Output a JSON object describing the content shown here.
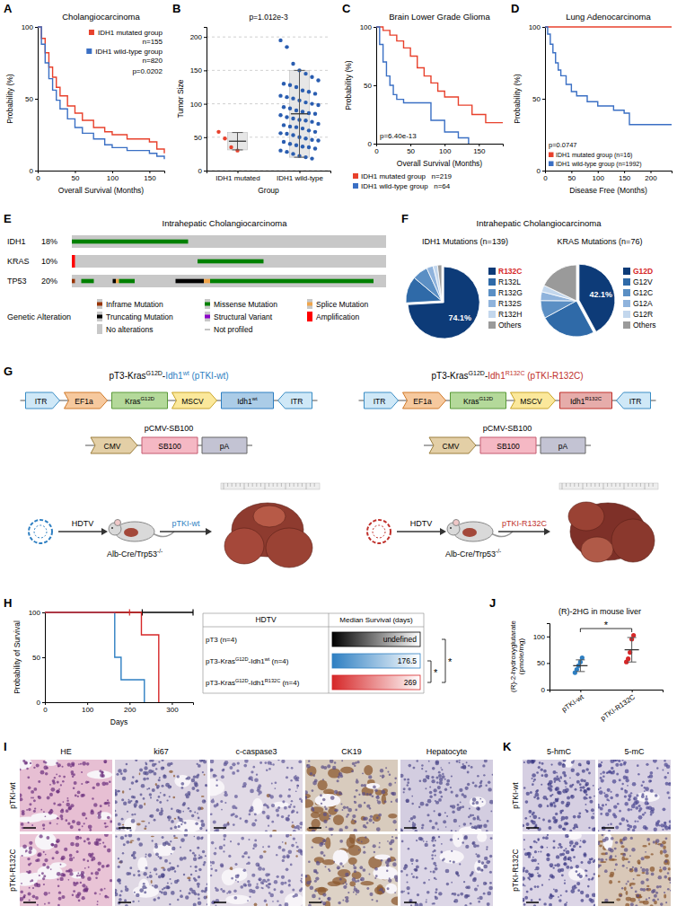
{
  "panels": [
    "A",
    "B",
    "C",
    "D",
    "E",
    "F",
    "G",
    "H",
    "I",
    "J",
    "K"
  ],
  "chart_data": [
    {
      "type": "line",
      "title": "Cholangiocarcinoma",
      "x_label": "Overall Survival (Months)",
      "y_label": "Probability (%)",
      "xlim": [
        0,
        170
      ],
      "ylim": [
        0,
        100
      ],
      "xticks": [
        0,
        50,
        100,
        150
      ],
      "yticks": [
        0,
        50,
        100
      ],
      "legend": "top-right",
      "annotation": "p=0.0202",
      "line_style": "step",
      "series": [
        {
          "name": "IDH1 mutated group",
          "n_label": "n=155",
          "color": "#e8412c",
          "x": [
            0,
            5,
            10,
            15,
            20,
            25,
            30,
            40,
            50,
            60,
            75,
            90,
            100,
            120,
            150,
            160,
            170
          ],
          "values": [
            100,
            92,
            82,
            72,
            65,
            58,
            52,
            45,
            40,
            35,
            30,
            27,
            25,
            22,
            20,
            15,
            12
          ]
        },
        {
          "name": "IDH1 wild-type group",
          "n_label": "n=820",
          "color": "#3a6fc4",
          "x": [
            0,
            5,
            10,
            15,
            20,
            25,
            30,
            40,
            50,
            60,
            75,
            90,
            100,
            120,
            150,
            160,
            170
          ],
          "values": [
            100,
            88,
            75,
            64,
            56,
            49,
            43,
            36,
            30,
            26,
            22,
            18,
            16,
            14,
            12,
            10,
            8
          ]
        }
      ]
    },
    {
      "type": "scatter",
      "annotation": "p=1.012e-3",
      "x_label": "Group",
      "y_label": "Tumor Size",
      "categories": [
        "IDH1 mutated",
        "IDH1 wild-type"
      ],
      "colors": [
        "#e8412c",
        "#2a5db0"
      ],
      "ylim": [
        0,
        215
      ],
      "yticks": [
        0,
        50,
        100,
        150,
        200
      ],
      "grid": true,
      "values": [
        [
          58,
          48,
          35,
          30
        ],
        [
          195,
          185,
          160,
          150,
          145,
          140,
          135,
          130,
          128,
          125,
          120,
          118,
          115,
          112,
          110,
          108,
          105,
          102,
          100,
          98,
          95,
          93,
          90,
          88,
          86,
          85,
          83,
          80,
          78,
          76,
          75,
          73,
          70,
          68,
          66,
          65,
          63,
          60,
          58,
          56,
          55,
          53,
          50,
          48,
          46,
          45,
          43,
          40,
          38,
          36,
          35,
          33,
          30,
          28,
          25,
          22,
          20,
          18
        ]
      ],
      "means": [
        44,
        85
      ],
      "sd": [
        13,
        65
      ]
    },
    {
      "type": "line",
      "title": "Brain Lower Grade Glioma",
      "x_label": "Overall Survival (Months)",
      "y_label": "Probability (%)",
      "xlim": [
        0,
        185
      ],
      "ylim": [
        0,
        100
      ],
      "xticks": [
        0,
        50,
        100,
        150
      ],
      "yticks": [
        0,
        50,
        100
      ],
      "legend": "bottom",
      "annotation": "p=6.40e-13",
      "line_style": "step",
      "series": [
        {
          "name": "IDH1 mutated group",
          "n_label": "n=219",
          "color": "#e8412c",
          "x": [
            0,
            10,
            20,
            30,
            40,
            50,
            60,
            70,
            80,
            90,
            100,
            120,
            140,
            160,
            185
          ],
          "values": [
            100,
            97,
            93,
            88,
            82,
            75,
            65,
            58,
            52,
            45,
            40,
            33,
            25,
            18,
            18
          ]
        },
        {
          "name": "IDH1 wild-type group",
          "n_label": "n=64",
          "color": "#3a6fc4",
          "x": [
            0,
            5,
            10,
            15,
            20,
            25,
            30,
            40,
            60,
            80,
            100,
            120,
            135
          ],
          "values": [
            100,
            85,
            70,
            58,
            50,
            42,
            38,
            35,
            35,
            20,
            10,
            5,
            0
          ]
        }
      ]
    },
    {
      "type": "line",
      "title": "Lung Adenocarcinoma",
      "x_label": "Disease Free (Months)",
      "y_label": "Probability (%)",
      "xlim": [
        0,
        240
      ],
      "ylim": [
        0,
        100
      ],
      "xticks": [
        0,
        50,
        100,
        150,
        200
      ],
      "yticks": [
        0,
        50,
        100
      ],
      "legend": "bottom-left",
      "annotation": "p=0.0747",
      "line_style": "step",
      "series": [
        {
          "name": "IDH1 mutated group (n=16)",
          "color": "#e8412c",
          "x": [
            0,
            240
          ],
          "values": [
            100,
            100
          ]
        },
        {
          "name": "IDH1 wild-type group (n=1992)",
          "color": "#3a6fc4",
          "x": [
            0,
            5,
            10,
            15,
            20,
            25,
            30,
            40,
            50,
            60,
            80,
            100,
            130,
            150,
            160,
            240
          ],
          "values": [
            100,
            95,
            88,
            82,
            75,
            70,
            66,
            60,
            55,
            52,
            48,
            45,
            42,
            40,
            32,
            32
          ]
        }
      ]
    },
    {
      "type": "pie",
      "title": "IDH1 Mutations (n=139)",
      "categories": [
        "R132C",
        "R132L",
        "R132G",
        "R132S",
        "R132H",
        "Others"
      ],
      "values": [
        74.1,
        12,
        7,
        3,
        2,
        1.9
      ],
      "colors": [
        "#0d3b78",
        "#2f6aa8",
        "#5b8fc4",
        "#8fb3dc",
        "#c3d7ed",
        "#9a9a9a"
      ],
      "data_labels": true,
      "value_labels": [
        "74.1%",
        null,
        null,
        null,
        null,
        null
      ],
      "legend": "right"
    },
    {
      "type": "pie",
      "title": "KRAS Mutations (n=76)",
      "categories": [
        "G12D",
        "G12V",
        "G12C",
        "G12A",
        "G12R",
        "Others"
      ],
      "values": [
        42.1,
        25,
        8,
        4,
        3,
        17.9
      ],
      "colors": [
        "#0d3b78",
        "#2f6aa8",
        "#5b8fc4",
        "#8fb3dc",
        "#c3d7ed",
        "#9a9a9a"
      ],
      "data_labels": true,
      "value_labels": [
        "42.1%",
        null,
        null,
        null,
        null,
        null
      ],
      "legend": "right"
    },
    {
      "type": "line",
      "x_label": "Days",
      "y_label": "Probability of Survival",
      "xlim": [
        0,
        350
      ],
      "ylim": [
        0,
        100
      ],
      "xticks": [
        0,
        100,
        200,
        300
      ],
      "yticks": [
        0,
        50,
        100
      ],
      "line_style": "step",
      "series": [
        {
          "color": "#000000",
          "x": [
            0,
            350
          ],
          "values": [
            100,
            100
          ],
          "censored": [
            230,
            350
          ]
        },
        {
          "color": "#2e7fc2",
          "x": [
            0,
            165,
            180,
            235
          ],
          "values": [
            100,
            50,
            25,
            0
          ]
        },
        {
          "color": "#d62728",
          "x": [
            0,
            228,
            269
          ],
          "values": [
            100,
            75,
            0
          ],
          "censored": [
            200
          ]
        }
      ]
    },
    {
      "type": "scatter",
      "title": "(R)-2HG in mouse liver",
      "y_label": "(R)-2-hydroxyglutarate (pmole/mg)",
      "categories": [
        "pTKI-wt",
        "pTKI-R132C"
      ],
      "colors": [
        "#2e7fc2",
        "#d62728"
      ],
      "ylim": [
        0,
        125
      ],
      "yticks": [
        0,
        50,
        100
      ],
      "values": [
        [
          32,
          38,
          45,
          52,
          60
        ],
        [
          52,
          58,
          70,
          95,
          102
        ]
      ],
      "means": [
        45,
        75
      ],
      "sd": [
        11,
        23
      ],
      "annotation": "*"
    }
  ],
  "panel_f_title": "Intrahepatic Cholangiocarcinoma",
  "oncoprint": {
    "title": "Intrahepatic Cholangiocarcinoma",
    "xlim": [
      0,
      100
    ],
    "genes": [
      {
        "name": "IDH1",
        "freq": "18%",
        "alterations": [
          {
            "type": "Missense Mutation",
            "start": 0,
            "end": 37
          }
        ]
      },
      {
        "name": "KRAS",
        "freq": "10%",
        "alterations": [
          {
            "type": "Amplification",
            "start": 0,
            "end": 1
          },
          {
            "type": "Missense Mutation",
            "start": 40,
            "end": 61
          }
        ]
      },
      {
        "name": "TP53",
        "freq": "20%",
        "alterations": [
          {
            "type": "Inframe Mutation",
            "start": 0,
            "end": 1
          },
          {
            "type": "Missense Mutation",
            "start": 3,
            "end": 7
          },
          {
            "type": "Truncating Mutation",
            "start": 13,
            "end": 14
          },
          {
            "type": "Splice Mutation",
            "start": 14,
            "end": 15
          },
          {
            "type": "Missense Mutation",
            "start": 15,
            "end": 20
          },
          {
            "type": "Truncating Mutation",
            "start": 33,
            "end": 42
          },
          {
            "type": "Splice Mutation",
            "start": 42,
            "end": 44
          },
          {
            "type": "Missense Mutation",
            "start": 44,
            "end": 96
          }
        ]
      }
    ],
    "legend_title": "Genetic Alteration",
    "legend": [
      {
        "label": "Inframe Mutation",
        "color": "#993404",
        "marker": "thin"
      },
      {
        "label": "Missense Mutation",
        "color": "#008000",
        "marker": "thin"
      },
      {
        "label": "Splice Mutation",
        "color": "#f0a54b",
        "marker": "thin"
      },
      {
        "label": "Truncating Mutation",
        "color": "#000000",
        "marker": "thin"
      },
      {
        "label": "Structural Variant",
        "color": "#8b00c9",
        "marker": "thin"
      },
      {
        "label": "Amplification",
        "color": "#ff0000",
        "marker": "full"
      },
      {
        "label": "No alterations",
        "color": "#c8c8c8",
        "marker": "full"
      },
      {
        "label": "Not profiled",
        "color": "#888888",
        "marker": "dash"
      }
    ]
  },
  "constructs": {
    "sb_plasmid": "pCMV-SB100",
    "sb_parts": [
      "CMV",
      "SB100",
      "pA"
    ],
    "arrow_label": "HDTV",
    "mouse": [
      {
        "text": "Alb-Cre/Trp53"
      },
      {
        "text": "-/-",
        "sup": true
      }
    ],
    "vectors": [
      {
        "title": [
          {
            "text": "pT3-Kras"
          },
          {
            "text": "G12D",
            "sup": true
          },
          {
            "text": "-"
          },
          {
            "text": "Idh1",
            "color": "#2e7fc2"
          },
          {
            "text": "wt",
            "sup": true,
            "color": "#2e7fc2"
          },
          {
            "text": " (pTKI-wt)",
            "color": "#2e7fc2"
          }
        ],
        "parts": [
          [
            {
              "text": "ITR"
            }
          ],
          [
            {
              "text": "EF1a"
            }
          ],
          [
            {
              "text": "Kras"
            },
            {
              "text": "G12D",
              "sup": true
            }
          ],
          [
            {
              "text": "MSCV"
            }
          ],
          [
            {
              "text": "Idh1"
            },
            {
              "text": "wt",
              "sup": true
            }
          ],
          [
            {
              "text": "ITR"
            }
          ]
        ],
        "injected": "pTKI-wt",
        "color": "#2e7fc2"
      },
      {
        "title": [
          {
            "text": "pT3-Kras"
          },
          {
            "text": "G12D",
            "sup": true
          },
          {
            "text": "-"
          },
          {
            "text": "Idh1",
            "color": "#c0302b"
          },
          {
            "text": "R132C",
            "sup": true,
            "color": "#c0302b"
          },
          {
            "text": " (pTKI-R132C)",
            "color": "#c0302b"
          }
        ],
        "parts": [
          [
            {
              "text": "ITR"
            }
          ],
          [
            {
              "text": "EF1a"
            }
          ],
          [
            {
              "text": "Kras"
            },
            {
              "text": "G12D",
              "sup": true
            }
          ],
          [
            {
              "text": "MSCV"
            }
          ],
          [
            {
              "text": "Idh1"
            },
            {
              "text": "R132C",
              "sup": true
            }
          ],
          [
            {
              "text": "ITR"
            }
          ]
        ],
        "injected": "pTKI-R132C",
        "color": "#c0302b"
      }
    ]
  },
  "survival_table": {
    "header": [
      "HDTV",
      "Median Survival (days)"
    ],
    "rows": [
      {
        "label": [
          {
            "text": "pT3 (n=4)"
          }
        ],
        "median": "undefined",
        "color": "#000000"
      },
      {
        "label": [
          {
            "text": "pT3-Kras"
          },
          {
            "text": "G12D",
            "sup": true
          },
          {
            "text": "-Idh1"
          },
          {
            "text": "wt",
            "sup": true
          },
          {
            "text": " (n=4)"
          }
        ],
        "median": 176.5,
        "color": "#2e7fc2"
      },
      {
        "label": [
          {
            "text": "pT3-Kras"
          },
          {
            "text": "G12D",
            "sup": true
          },
          {
            "text": "-Idh1"
          },
          {
            "text": "R132C",
            "sup": true
          },
          {
            "text": " (n=4)"
          }
        ],
        "median": 269,
        "color": "#d62728"
      }
    ],
    "significance": [
      "*",
      "*"
    ]
  },
  "histology_i": {
    "columns": [
      "HE",
      "ki67",
      "c-caspase3",
      "CK19",
      "Hepatocyte"
    ],
    "rows": [
      "pTKI-wt",
      "pTKI-R132C"
    ]
  },
  "histology_k": {
    "columns": [
      "5-hmC",
      "5-mC"
    ],
    "rows": [
      "pTKI-wt",
      "pTKI-R132C"
    ]
  }
}
